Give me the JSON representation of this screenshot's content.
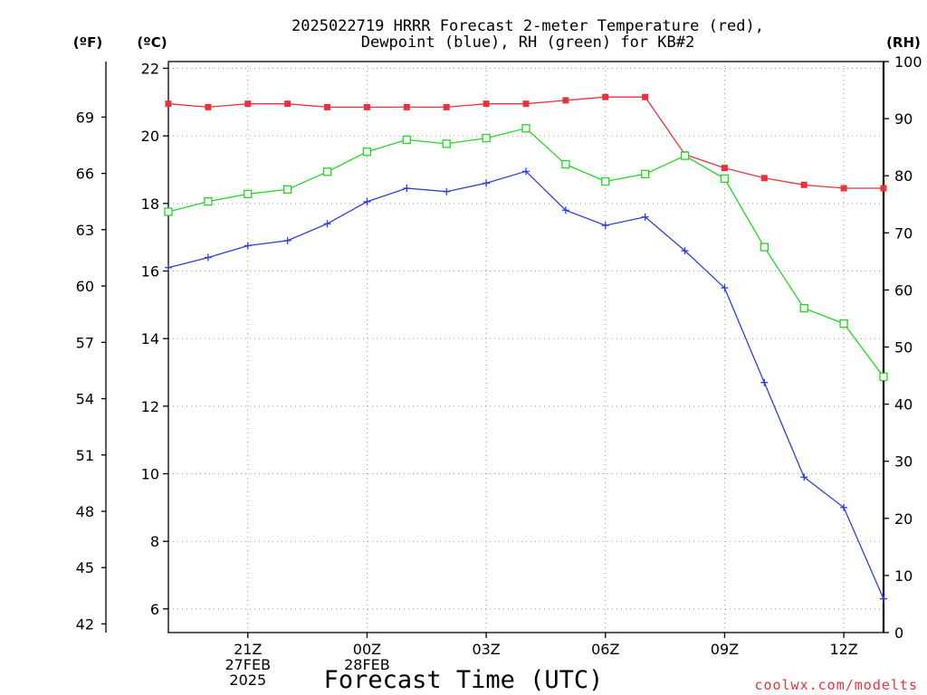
{
  "chart_data": {
    "type": "line",
    "title_lines": [
      "2025022719 HRRR Forecast 2-meter Temperature (red),",
      "Dewpoint (blue), RH (green) for KB#2"
    ],
    "xlabel": "Forecast Time (UTC)",
    "x_hours": [
      19,
      20,
      21,
      22,
      23,
      24,
      25,
      26,
      27,
      28,
      29,
      30,
      31,
      32,
      33,
      34,
      35,
      36,
      37
    ],
    "x_ticks": [
      {
        "hour": 21,
        "lines": [
          "21Z",
          "27FEB",
          "2025"
        ]
      },
      {
        "hour": 24,
        "lines": [
          "00Z",
          "28FEB"
        ]
      },
      {
        "hour": 27,
        "lines": [
          "03Z"
        ]
      },
      {
        "hour": 30,
        "lines": [
          "06Z"
        ]
      },
      {
        "hour": 33,
        "lines": [
          "09Z"
        ]
      },
      {
        "hour": 36,
        "lines": [
          "12Z"
        ]
      }
    ],
    "xlim": [
      19,
      37
    ],
    "left_axis_c": {
      "label": "(ºC)",
      "range": [
        5.3,
        22.2
      ],
      "ticks": [
        6,
        8,
        10,
        12,
        14,
        16,
        18,
        20,
        22
      ]
    },
    "left_axis_f": {
      "label": "(ºF)",
      "ticks": [
        42,
        45,
        48,
        51,
        54,
        57,
        60,
        63,
        66,
        69
      ]
    },
    "right_axis_rh": {
      "label": "(RH)",
      "range": [
        0,
        100
      ],
      "ticks": [
        0,
        10,
        20,
        30,
        40,
        50,
        60,
        70,
        80,
        90,
        100
      ]
    },
    "grid": true,
    "series": [
      {
        "key": "temperature",
        "color": "#e8323c",
        "marker": "filled-square",
        "axis": "celsius",
        "values": [
          20.95,
          20.85,
          20.95,
          20.95,
          20.85,
          20.85,
          20.85,
          20.85,
          20.95,
          20.95,
          21.05,
          21.15,
          21.15,
          19.45,
          19.05,
          18.75,
          18.55,
          18.45,
          18.45
        ]
      },
      {
        "key": "dewpoint",
        "color": "#2b3fd9",
        "marker": "plus",
        "axis": "celsius",
        "values": [
          16.1,
          16.4,
          16.75,
          16.9,
          17.4,
          18.05,
          18.45,
          18.35,
          18.6,
          18.95,
          17.8,
          17.35,
          17.6,
          16.6,
          15.5,
          12.7,
          9.9,
          9.0,
          6.3
        ]
      },
      {
        "key": "rh",
        "color": "#22d622",
        "marker": "open-square",
        "axis": "rh",
        "values": [
          73.7,
          75.5,
          76.8,
          77.6,
          80.7,
          84.2,
          86.3,
          85.6,
          86.6,
          88.3,
          82.0,
          79.0,
          80.3,
          83.5,
          79.5,
          67.5,
          56.8,
          54.1,
          44.8
        ]
      }
    ]
  },
  "credit": "coolwx.com/modelts"
}
